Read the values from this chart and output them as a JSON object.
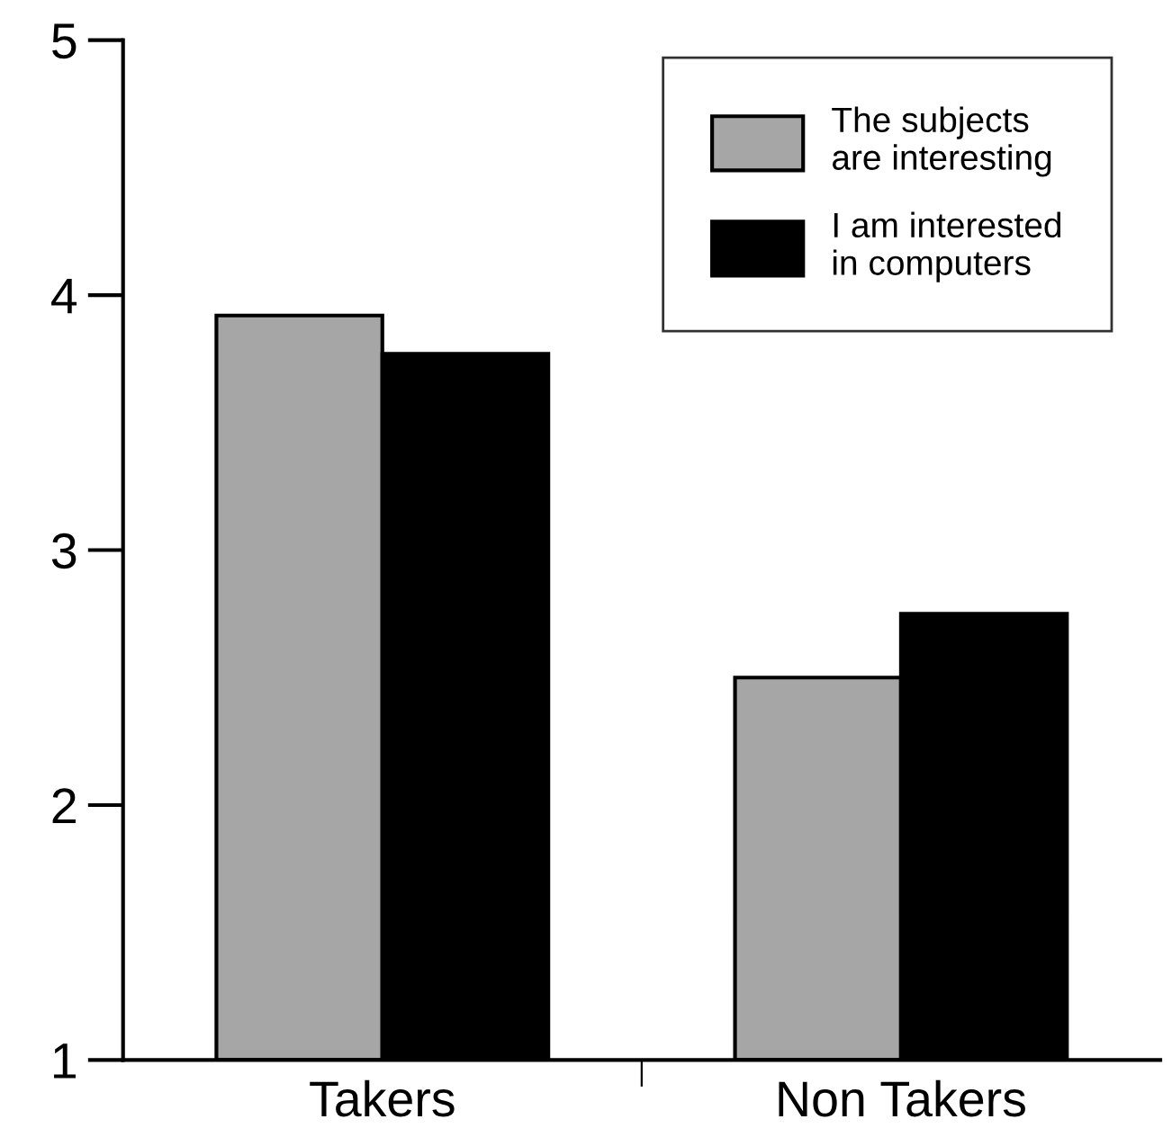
{
  "chart_data": {
    "type": "bar",
    "categories": [
      "Takers",
      "Non Takers"
    ],
    "series": [
      {
        "name": "The subjects\nare interesting",
        "color": "#a6a6a6",
        "values": [
          3.92,
          2.5
        ]
      },
      {
        "name": "I am interested\nin computers",
        "color": "#000000",
        "values": [
          3.77,
          2.75
        ]
      }
    ],
    "ylim": [
      1,
      5
    ],
    "yticks": [
      1,
      2,
      3,
      4,
      5
    ],
    "grid": false,
    "legend": "top right"
  }
}
